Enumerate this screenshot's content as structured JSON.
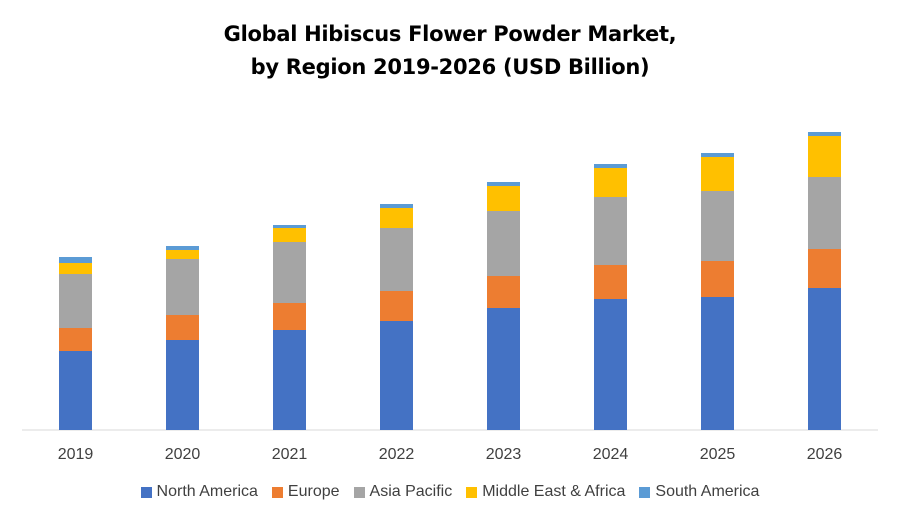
{
  "title_lines": [
    "Global Hibiscus Flower Powder Market,",
    "by Region 2019-2026 (USD Billion)"
  ],
  "chart_data": {
    "type": "bar",
    "stacked": true,
    "title": "Global Hibiscus Flower Powder Market, by Region 2019-2026 (USD Billion)",
    "categories": [
      "2019",
      "2020",
      "2021",
      "2022",
      "2023",
      "2024",
      "2025",
      "2026"
    ],
    "series": [
      {
        "name": "North America",
        "color": "#4472C4",
        "values": [
          79,
          90,
          100,
          109,
          122,
          131,
          133,
          142
        ]
      },
      {
        "name": "Europe",
        "color": "#ED7D31",
        "values": [
          23,
          25,
          27,
          30,
          32,
          34,
          36,
          39
        ]
      },
      {
        "name": "Asia Pacific",
        "color": "#A5A5A5",
        "values": [
          54,
          56,
          61,
          63,
          65,
          68,
          70,
          72
        ]
      },
      {
        "name": "Middle East & Africa",
        "color": "#FFC000",
        "values": [
          11,
          9,
          14,
          20,
          25,
          29,
          34,
          41
        ]
      },
      {
        "name": "South America",
        "color": "#5B9BD5",
        "values": [
          6,
          4,
          3,
          4,
          4,
          4,
          4,
          4
        ]
      }
    ],
    "ylim": [
      0,
      300
    ],
    "grid": false,
    "legend_position": "bottom",
    "xlabel": "",
    "ylabel": ""
  }
}
